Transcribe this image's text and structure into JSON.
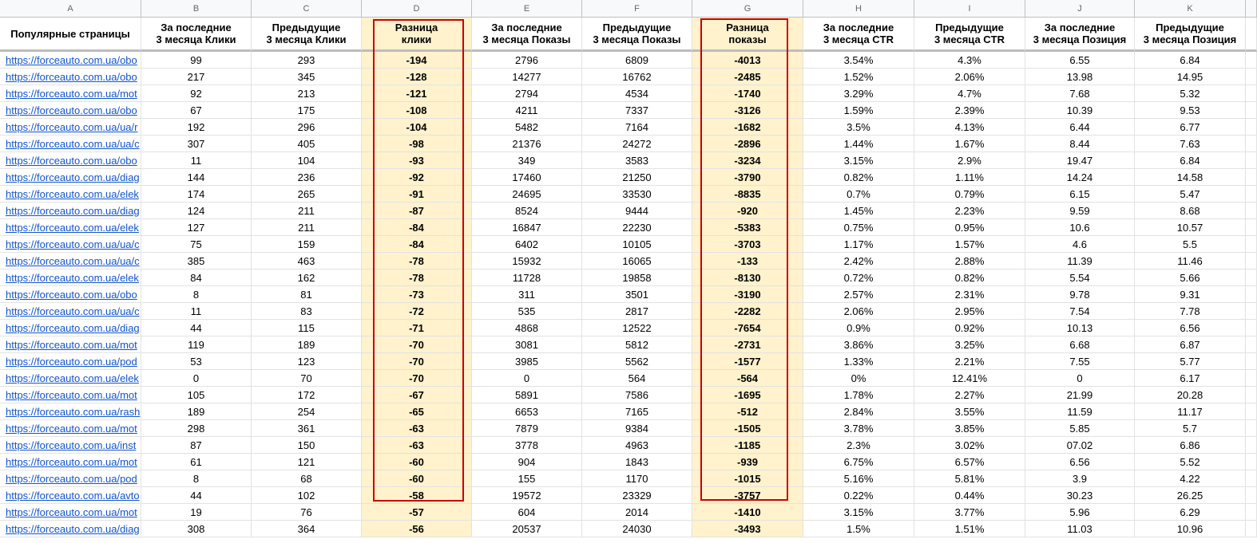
{
  "columns": [
    "A",
    "B",
    "C",
    "D",
    "E",
    "F",
    "G",
    "H",
    "I",
    "J",
    "K"
  ],
  "header": [
    "Популярные страницы",
    "За последние\n3 месяца Клики",
    "Предыдущие\n3 месяца Клики",
    "Разница\nклики",
    "За последние\n3 месяца Показы",
    "Предыдущие\n3 месяца Показы",
    "Разница\nпоказы",
    "За последние\n3 месяца CTR",
    "Предыдущие\n3 месяца CTR",
    "За последние\n3 месяца Позиция",
    "Предыдущие\n3 месяца Позиция"
  ],
  "rows": [
    [
      "https://forceauto.com.ua/obo",
      "99",
      "293",
      "-194",
      "2796",
      "6809",
      "-4013",
      "3.54%",
      "4.3%",
      "6.55",
      "6.84"
    ],
    [
      "https://forceauto.com.ua/obo",
      "217",
      "345",
      "-128",
      "14277",
      "16762",
      "-2485",
      "1.52%",
      "2.06%",
      "13.98",
      "14.95"
    ],
    [
      "https://forceauto.com.ua/mot",
      "92",
      "213",
      "-121",
      "2794",
      "4534",
      "-1740",
      "3.29%",
      "4.7%",
      "7.68",
      "5.32"
    ],
    [
      "https://forceauto.com.ua/obo",
      "67",
      "175",
      "-108",
      "4211",
      "7337",
      "-3126",
      "1.59%",
      "2.39%",
      "10.39",
      "9.53"
    ],
    [
      "https://forceauto.com.ua/ua/r",
      "192",
      "296",
      "-104",
      "5482",
      "7164",
      "-1682",
      "3.5%",
      "4.13%",
      "6.44",
      "6.77"
    ],
    [
      "https://forceauto.com.ua/ua/c",
      "307",
      "405",
      "-98",
      "21376",
      "24272",
      "-2896",
      "1.44%",
      "1.67%",
      "8.44",
      "7.63"
    ],
    [
      "https://forceauto.com.ua/obo",
      "11",
      "104",
      "-93",
      "349",
      "3583",
      "-3234",
      "3.15%",
      "2.9%",
      "19.47",
      "6.84"
    ],
    [
      "https://forceauto.com.ua/diag",
      "144",
      "236",
      "-92",
      "17460",
      "21250",
      "-3790",
      "0.82%",
      "1.11%",
      "14.24",
      "14.58"
    ],
    [
      "https://forceauto.com.ua/elek",
      "174",
      "265",
      "-91",
      "24695",
      "33530",
      "-8835",
      "0.7%",
      "0.79%",
      "6.15",
      "5.47"
    ],
    [
      "https://forceauto.com.ua/diag",
      "124",
      "211",
      "-87",
      "8524",
      "9444",
      "-920",
      "1.45%",
      "2.23%",
      "9.59",
      "8.68"
    ],
    [
      "https://forceauto.com.ua/elek",
      "127",
      "211",
      "-84",
      "16847",
      "22230",
      "-5383",
      "0.75%",
      "0.95%",
      "10.6",
      "10.57"
    ],
    [
      "https://forceauto.com.ua/ua/c",
      "75",
      "159",
      "-84",
      "6402",
      "10105",
      "-3703",
      "1.17%",
      "1.57%",
      "4.6",
      "5.5"
    ],
    [
      "https://forceauto.com.ua/ua/c",
      "385",
      "463",
      "-78",
      "15932",
      "16065",
      "-133",
      "2.42%",
      "2.88%",
      "11.39",
      "11.46"
    ],
    [
      "https://forceauto.com.ua/elek",
      "84",
      "162",
      "-78",
      "11728",
      "19858",
      "-8130",
      "0.72%",
      "0.82%",
      "5.54",
      "5.66"
    ],
    [
      "https://forceauto.com.ua/obo",
      "8",
      "81",
      "-73",
      "311",
      "3501",
      "-3190",
      "2.57%",
      "2.31%",
      "9.78",
      "9.31"
    ],
    [
      "https://forceauto.com.ua/ua/c",
      "11",
      "83",
      "-72",
      "535",
      "2817",
      "-2282",
      "2.06%",
      "2.95%",
      "7.54",
      "7.78"
    ],
    [
      "https://forceauto.com.ua/diag",
      "44",
      "115",
      "-71",
      "4868",
      "12522",
      "-7654",
      "0.9%",
      "0.92%",
      "10.13",
      "6.56"
    ],
    [
      "https://forceauto.com.ua/mot",
      "119",
      "189",
      "-70",
      "3081",
      "5812",
      "-2731",
      "3.86%",
      "3.25%",
      "6.68",
      "6.87"
    ],
    [
      "https://forceauto.com.ua/pod",
      "53",
      "123",
      "-70",
      "3985",
      "5562",
      "-1577",
      "1.33%",
      "2.21%",
      "7.55",
      "5.77"
    ],
    [
      "https://forceauto.com.ua/elek",
      "0",
      "70",
      "-70",
      "0",
      "564",
      "-564",
      "0%",
      "12.41%",
      "0",
      "6.17"
    ],
    [
      "https://forceauto.com.ua/mot",
      "105",
      "172",
      "-67",
      "5891",
      "7586",
      "-1695",
      "1.78%",
      "2.27%",
      "21.99",
      "20.28"
    ],
    [
      "https://forceauto.com.ua/rash",
      "189",
      "254",
      "-65",
      "6653",
      "7165",
      "-512",
      "2.84%",
      "3.55%",
      "11.59",
      "11.17"
    ],
    [
      "https://forceauto.com.ua/mot",
      "298",
      "361",
      "-63",
      "7879",
      "9384",
      "-1505",
      "3.78%",
      "3.85%",
      "5.85",
      "5.7"
    ],
    [
      "https://forceauto.com.ua/inst",
      "87",
      "150",
      "-63",
      "3778",
      "4963",
      "-1185",
      "2.3%",
      "3.02%",
      "07.02",
      "6.86"
    ],
    [
      "https://forceauto.com.ua/mot",
      "61",
      "121",
      "-60",
      "904",
      "1843",
      "-939",
      "6.75%",
      "6.57%",
      "6.56",
      "5.52"
    ],
    [
      "https://forceauto.com.ua/pod",
      "8",
      "68",
      "-60",
      "155",
      "1170",
      "-1015",
      "5.16%",
      "5.81%",
      "3.9",
      "4.22"
    ],
    [
      "https://forceauto.com.ua/avto",
      "44",
      "102",
      "-58",
      "19572",
      "23329",
      "-3757",
      "0.22%",
      "0.44%",
      "30.23",
      "26.25"
    ],
    [
      "https://forceauto.com.ua/mot",
      "19",
      "76",
      "-57",
      "604",
      "2014",
      "-1410",
      "3.15%",
      "3.77%",
      "5.96",
      "6.29"
    ],
    [
      "https://forceauto.com.ua/diag",
      "308",
      "364",
      "-56",
      "20537",
      "24030",
      "-3493",
      "1.5%",
      "1.51%",
      "11.03",
      "10.96"
    ]
  ]
}
